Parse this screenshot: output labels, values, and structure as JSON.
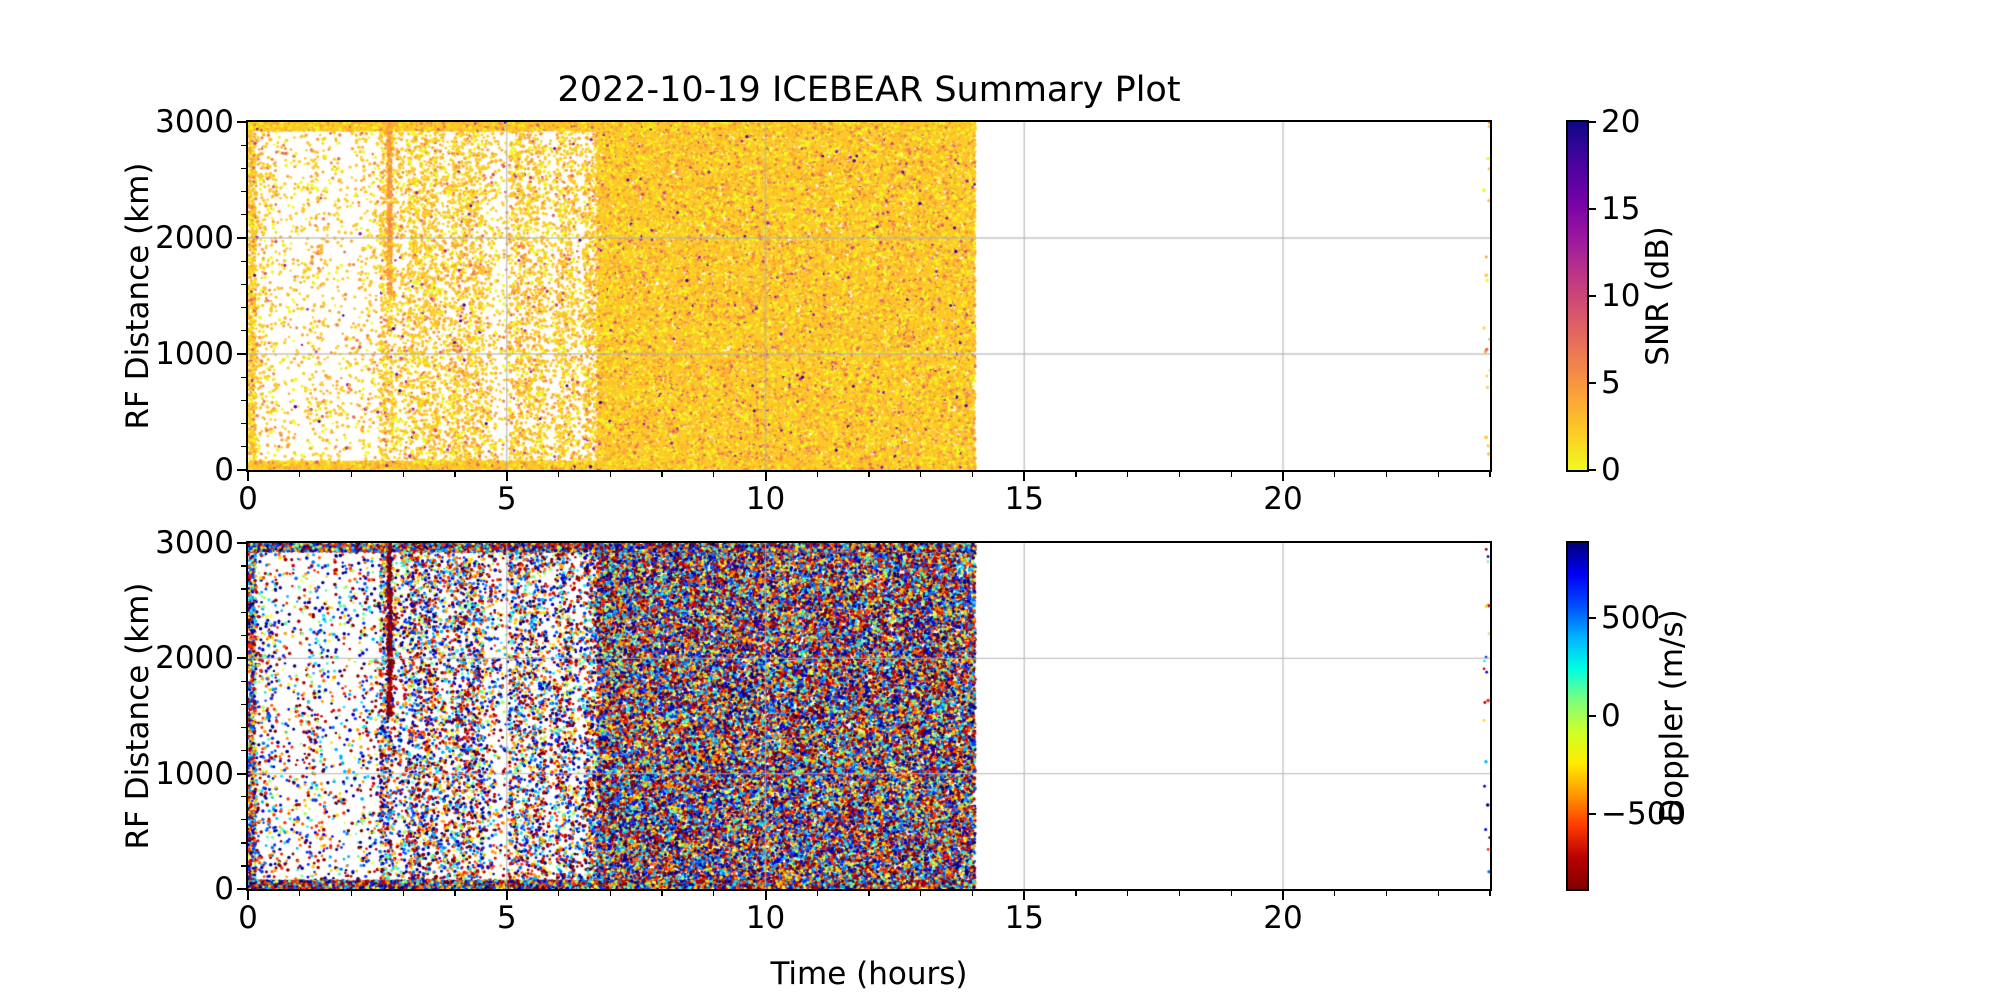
{
  "title": "2022-10-19 ICEBEAR Summary Plot",
  "xlabel": "Time (hours)",
  "grid_color": "#b0b0b0",
  "background": "#ffffff",
  "chart_data": [
    {
      "type": "scatter",
      "name": "snr-panel",
      "ylabel": "RF Distance (km)",
      "xlim": [
        0,
        24
      ],
      "ylim": [
        0,
        3000
      ],
      "xticks": [
        0,
        5,
        10,
        15,
        20
      ],
      "xminor_step": 1,
      "yticks": [
        0,
        1000,
        2000,
        3000
      ],
      "yminor_step": 200,
      "grid_x": [
        5,
        10,
        15,
        20
      ],
      "grid_y": [
        1000,
        2000
      ],
      "grid": true,
      "colorbar": {
        "label": "SNR (dB)",
        "vmin": 0,
        "vmax": 20,
        "cmap": "plasma_r",
        "ticks": [
          {
            "v": 20,
            "t": "20"
          },
          {
            "v": 15,
            "t": "15"
          },
          {
            "v": 10,
            "t": "10"
          },
          {
            "v": 5,
            "t": "5"
          },
          {
            "v": 0,
            "t": "0"
          }
        ],
        "gradient_top_to_bottom": [
          "#0d0887",
          "#46039f",
          "#7201a8",
          "#9c179e",
          "#bd3786",
          "#d8576b",
          "#ed7953",
          "#fb9f3a",
          "#fdca26",
          "#f0f921"
        ]
      },
      "point_palette": [
        [
          "#f0f921",
          18
        ],
        [
          "#fdca26",
          56
        ],
        [
          "#fca636",
          17
        ],
        [
          "#f2844b",
          6
        ],
        [
          "#e16462",
          1.8
        ],
        [
          "#cc4778",
          0.6
        ],
        [
          "#9c179e",
          0.35
        ],
        [
          "#46039f",
          0.25
        ]
      ],
      "segments": [
        [
          0.0,
          0.15,
          5000
        ],
        [
          0.15,
          0.55,
          900
        ],
        [
          0.55,
          1.15,
          420
        ],
        [
          1.15,
          1.5,
          700
        ],
        [
          1.5,
          2.15,
          420
        ],
        [
          2.15,
          2.55,
          650
        ],
        [
          2.55,
          2.8,
          2600
        ],
        [
          2.8,
          3.1,
          1300
        ],
        [
          3.1,
          3.65,
          2200
        ],
        [
          3.65,
          3.95,
          1400
        ],
        [
          3.95,
          4.55,
          2200
        ],
        [
          4.55,
          4.8,
          1100
        ],
        [
          4.8,
          5.05,
          600
        ],
        [
          5.05,
          5.75,
          2000
        ],
        [
          5.75,
          5.95,
          900
        ],
        [
          5.95,
          6.3,
          2000
        ],
        [
          6.3,
          6.5,
          1100
        ],
        [
          6.5,
          6.75,
          2600
        ],
        [
          6.75,
          14.05,
          9000
        ],
        [
          23.88,
          24.0,
          170
        ]
      ],
      "bands": [
        {
          "t0": 0.0,
          "t1": 14.05,
          "km0": 2930,
          "km1": 3000,
          "pph": 130
        },
        {
          "t0": 0.0,
          "t1": 14.05,
          "km0": 0,
          "km1": 70,
          "pph": 90
        }
      ],
      "streak": {
        "t0": 2.7,
        "t1": 2.77,
        "km0": 1500,
        "km1": 3000,
        "n": 300,
        "palette": [
          [
            "#fb9f3a",
            60
          ],
          [
            "#f2844b",
            30
          ],
          [
            "#fdca26",
            10
          ]
        ]
      },
      "seed": 20221019
    },
    {
      "type": "scatter",
      "name": "doppler-panel",
      "ylabel": "RF Distance (km)",
      "xlim": [
        0,
        24
      ],
      "ylim": [
        0,
        3000
      ],
      "xticks": [
        0,
        5,
        10,
        15,
        20
      ],
      "xminor_step": 1,
      "yticks": [
        0,
        1000,
        2000,
        3000
      ],
      "yminor_step": 200,
      "grid_x": [
        5,
        10,
        15,
        20
      ],
      "grid_y": [
        1000,
        2000
      ],
      "grid": true,
      "colorbar": {
        "label": "Doppler (m/s)",
        "vmin": -880,
        "vmax": 880,
        "cmap": "jet_r",
        "ticks": [
          {
            "v": 500,
            "t": "500"
          },
          {
            "v": 0,
            "t": "0"
          },
          {
            "v": -500,
            "t": "−500"
          }
        ],
        "gradient_top_to_bottom": [
          "#000080",
          "#0000f2",
          "#004dff",
          "#00b3ff",
          "#00ffe3",
          "#7cff7c",
          "#ceff29",
          "#ffec00",
          "#ff9700",
          "#ff3900",
          "#ba0000",
          "#800000"
        ]
      },
      "point_palette": [
        [
          "#800000",
          9
        ],
        [
          "#aa0000",
          7
        ],
        [
          "#d40000",
          7
        ],
        [
          "#ff2b00",
          6
        ],
        [
          "#ff6600",
          6
        ],
        [
          "#ff9e00",
          6
        ],
        [
          "#ffd500",
          5
        ],
        [
          "#f2ff38",
          4
        ],
        [
          "#a3ff5c",
          4
        ],
        [
          "#5cffa3",
          4
        ],
        [
          "#1be3f7",
          5
        ],
        [
          "#00b0ff",
          6
        ],
        [
          "#0072ff",
          6
        ],
        [
          "#0038ff",
          7
        ],
        [
          "#0000d0",
          8
        ],
        [
          "#000080",
          10
        ]
      ],
      "segments": [
        [
          0.0,
          0.15,
          5000
        ],
        [
          0.15,
          0.55,
          900
        ],
        [
          0.55,
          1.15,
          420
        ],
        [
          1.15,
          1.5,
          700
        ],
        [
          1.5,
          2.15,
          420
        ],
        [
          2.15,
          2.55,
          650
        ],
        [
          2.55,
          2.8,
          2600
        ],
        [
          2.8,
          3.1,
          1300
        ],
        [
          3.1,
          3.65,
          2200
        ],
        [
          3.65,
          3.95,
          1400
        ],
        [
          3.95,
          4.55,
          2200
        ],
        [
          4.55,
          4.8,
          1100
        ],
        [
          4.8,
          5.05,
          600
        ],
        [
          5.05,
          5.75,
          2000
        ],
        [
          5.75,
          5.95,
          900
        ],
        [
          5.95,
          6.3,
          2000
        ],
        [
          6.3,
          6.5,
          1100
        ],
        [
          6.5,
          6.75,
          2600
        ],
        [
          6.75,
          14.05,
          7200
        ],
        [
          23.88,
          24.0,
          170
        ]
      ],
      "bands": [
        {
          "t0": 0.0,
          "t1": 14.05,
          "km0": 2930,
          "km1": 3000,
          "pph": 130
        },
        {
          "t0": 0.0,
          "t1": 14.05,
          "km0": 0,
          "km1": 70,
          "pph": 90
        }
      ],
      "streak": {
        "t0": 2.7,
        "t1": 2.77,
        "km0": 1500,
        "km1": 3000,
        "n": 300,
        "palette": [
          [
            "#800000",
            55
          ],
          [
            "#a00000",
            25
          ],
          [
            "#cc0000",
            12
          ],
          [
            "#0000a0",
            8
          ]
        ]
      },
      "seed": 19102022
    }
  ]
}
